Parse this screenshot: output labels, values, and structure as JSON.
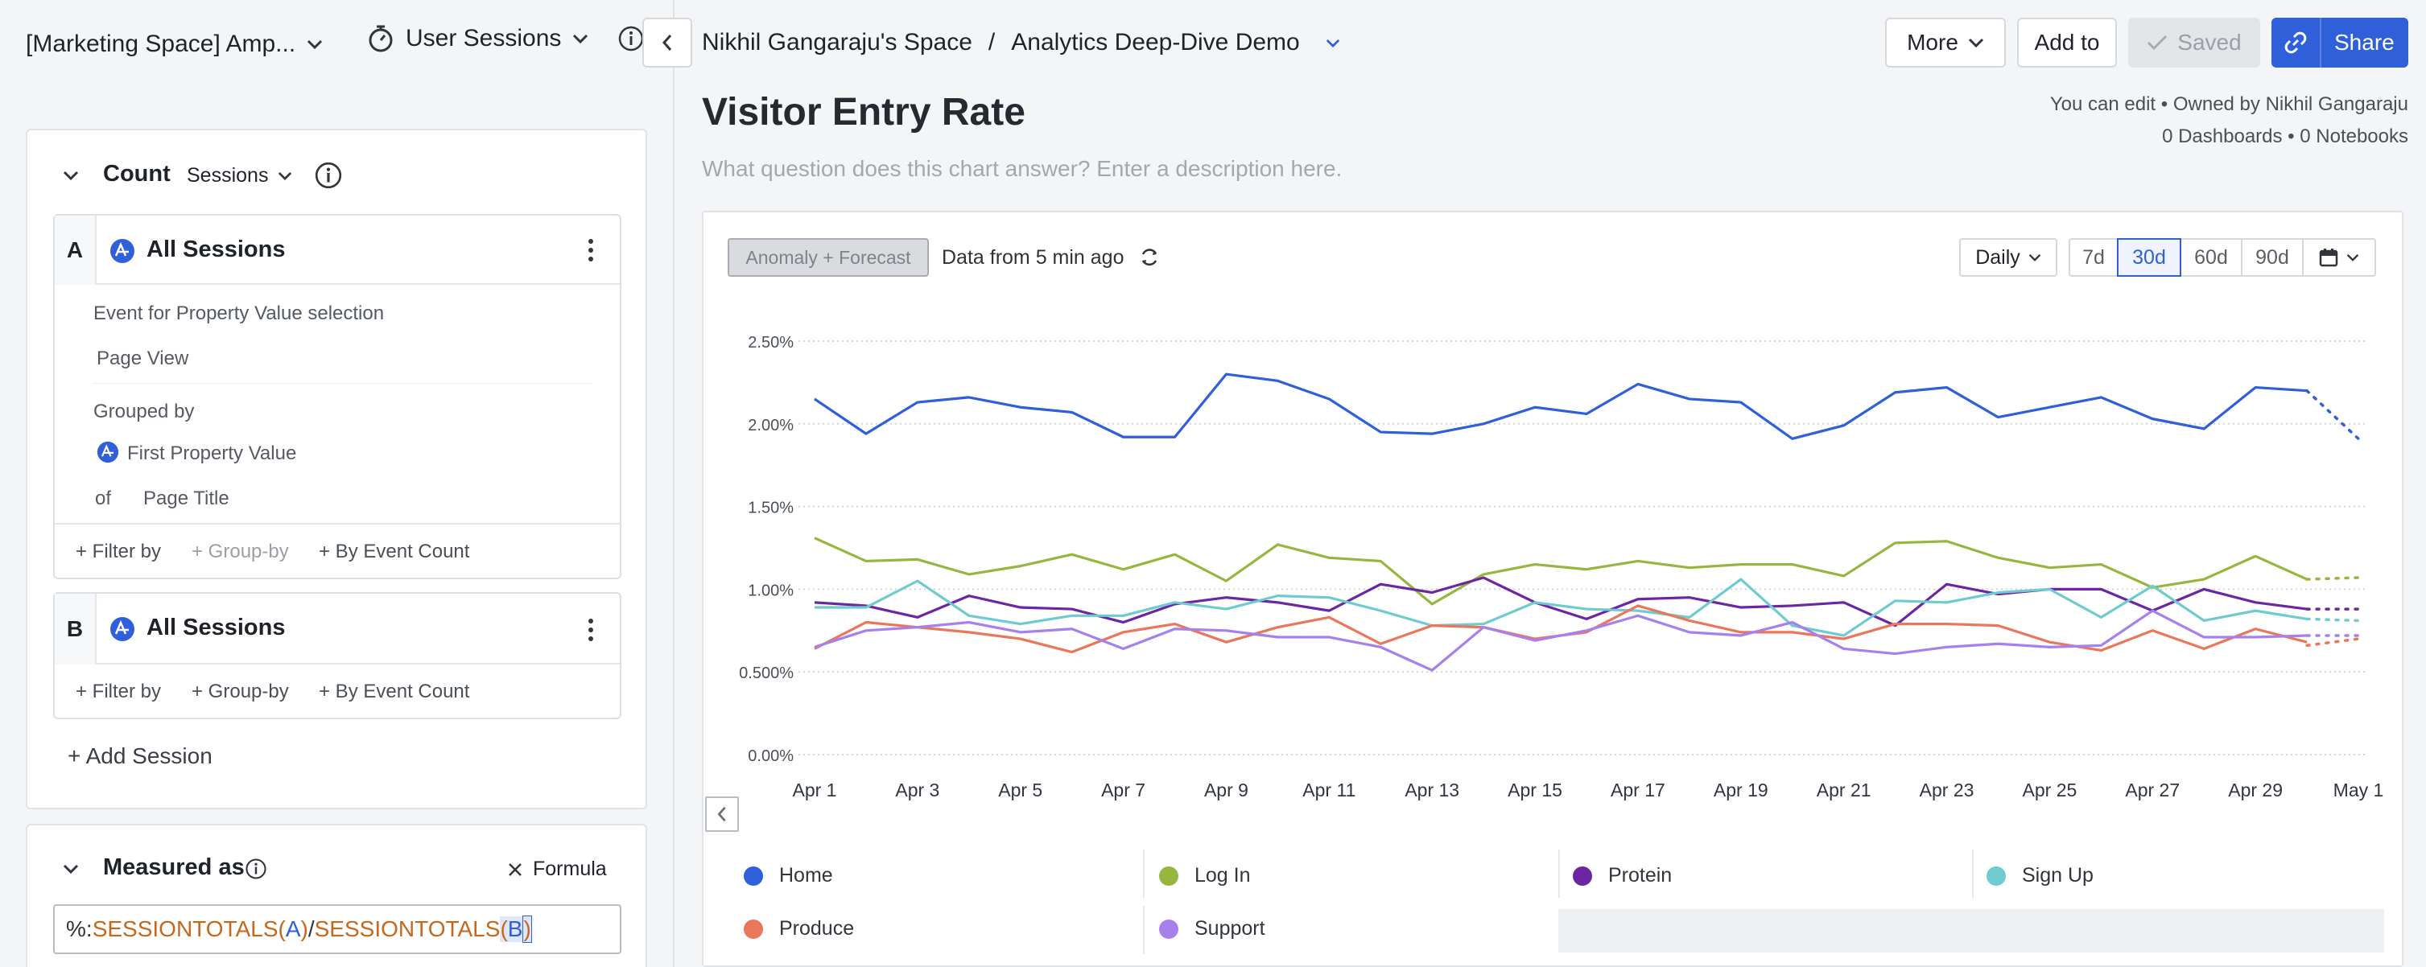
{
  "left": {
    "project": "[Marketing Space] Amp...",
    "chart_type": "User Sessions",
    "count": {
      "title": "Count",
      "unit": "Sessions"
    },
    "segment_a": {
      "letter": "A",
      "name": "All Sessions",
      "event_heading": "Event for Property Value selection",
      "event_value": "Page View",
      "grouped_by": "Grouped by",
      "group_property": "First Property Value",
      "of_label": "of",
      "of_value": "Page Title",
      "filter_by": "+ Filter by",
      "group_by": "+ Group-by",
      "by_event_count": "+ By Event Count"
    },
    "segment_b": {
      "letter": "B",
      "name": "All Sessions",
      "filter_by": "+ Filter by",
      "group_by": "+ Group-by",
      "by_event_count": "+ By Event Count"
    },
    "add_session": "+ Add Session",
    "measured_as": "Measured as",
    "formula_button": "Formula",
    "formula": {
      "prefix": "%:",
      "fn1": "SESSIONTOTALS",
      "arg1": "A",
      "sep": "/",
      "fn2": "SESSIONTOTALS",
      "arg2": "B",
      "open": "(",
      "close": ")"
    }
  },
  "header": {
    "space": "Nikhil Gangaraju's Space",
    "separator": "/",
    "report": "Analytics Deep-Dive Demo",
    "more": "More",
    "add_to": "Add to",
    "saved": "Saved",
    "share": "Share"
  },
  "chart_header": {
    "title": "Visitor Entry Rate",
    "description_placeholder": "What question does this chart answer? Enter a description here.",
    "ownership": "You can edit • Owned by Nikhil Gangaraju",
    "dashboards": "0 Dashboards • 0 Notebooks"
  },
  "toolbar": {
    "anomaly": "Anomaly + Forecast",
    "data_freshness": "Data from 5 min ago",
    "interval": "Daily",
    "ranges": [
      "7d",
      "30d",
      "60d",
      "90d"
    ],
    "selected_range": "30d"
  },
  "colors": {
    "accent": "#2f5fd9",
    "home": "#2f5fd9",
    "log_in": "#97b640",
    "protein": "#6c26a4",
    "sign_up": "#6ecbd0",
    "produce": "#ea775b",
    "support": "#a680ec"
  },
  "chart_data": {
    "type": "line",
    "title": "Visitor Entry Rate",
    "x": [
      "Apr 1",
      "Apr 2",
      "Apr 3",
      "Apr 4",
      "Apr 5",
      "Apr 6",
      "Apr 7",
      "Apr 8",
      "Apr 9",
      "Apr 10",
      "Apr 11",
      "Apr 12",
      "Apr 13",
      "Apr 14",
      "Apr 15",
      "Apr 16",
      "Apr 17",
      "Apr 18",
      "Apr 19",
      "Apr 20",
      "Apr 21",
      "Apr 22",
      "Apr 23",
      "Apr 24",
      "Apr 25",
      "Apr 26",
      "Apr 27",
      "Apr 28",
      "Apr 29",
      "Apr 30"
    ],
    "x_ticks": [
      "Apr 1",
      "Apr 3",
      "Apr 5",
      "Apr 7",
      "Apr 9",
      "Apr 11",
      "Apr 13",
      "Apr 15",
      "Apr 17",
      "Apr 19",
      "Apr 21",
      "Apr 23",
      "Apr 25",
      "Apr 27",
      "Apr 29",
      "May 1"
    ],
    "y_ticks": [
      "0.00%",
      "0.500%",
      "1.00%",
      "1.50%",
      "2.00%",
      "2.50%"
    ],
    "ylim": [
      0,
      2.5
    ],
    "y_unit": "%",
    "grid": true,
    "forecast_to": "May 1",
    "series": [
      {
        "name": "Home",
        "color": "#2f5fd9",
        "values": [
          2.15,
          1.94,
          2.13,
          2.16,
          2.1,
          2.07,
          1.92,
          1.92,
          2.3,
          2.26,
          2.15,
          1.95,
          1.94,
          2.0,
          2.1,
          2.06,
          2.24,
          2.15,
          2.13,
          1.91,
          1.99,
          2.19,
          2.22,
          2.04,
          2.1,
          2.16,
          2.03,
          1.97,
          2.22,
          2.2
        ],
        "forecast": [
          2.2,
          1.91
        ]
      },
      {
        "name": "Log In",
        "color": "#97b640",
        "values": [
          1.31,
          1.17,
          1.18,
          1.09,
          1.14,
          1.21,
          1.12,
          1.21,
          1.05,
          1.27,
          1.19,
          1.17,
          0.91,
          1.09,
          1.15,
          1.12,
          1.17,
          1.13,
          1.15,
          1.15,
          1.08,
          1.28,
          1.29,
          1.19,
          1.13,
          1.15,
          1.01,
          1.06,
          1.2,
          1.06
        ],
        "forecast": [
          1.06,
          1.07
        ]
      },
      {
        "name": "Protein",
        "color": "#6c26a4",
        "values": [
          0.92,
          0.9,
          0.83,
          0.96,
          0.89,
          0.88,
          0.8,
          0.91,
          0.95,
          0.92,
          0.87,
          1.03,
          0.98,
          1.07,
          0.92,
          0.82,
          0.94,
          0.95,
          0.89,
          0.9,
          0.92,
          0.78,
          1.03,
          0.97,
          1.0,
          1.0,
          0.87,
          1.0,
          0.92,
          0.88
        ],
        "forecast": [
          0.88,
          0.88
        ]
      },
      {
        "name": "Sign Up",
        "color": "#6ecbd0",
        "values": [
          0.89,
          0.89,
          1.05,
          0.84,
          0.79,
          0.84,
          0.84,
          0.92,
          0.88,
          0.96,
          0.95,
          0.87,
          0.78,
          0.79,
          0.92,
          0.88,
          0.87,
          0.83,
          1.06,
          0.78,
          0.72,
          0.93,
          0.92,
          0.98,
          1.0,
          0.83,
          1.02,
          0.81,
          0.87,
          0.82
        ],
        "forecast": [
          0.82,
          0.81
        ]
      },
      {
        "name": "Produce",
        "color": "#ea775b",
        "values": [
          0.64,
          0.8,
          0.77,
          0.74,
          0.7,
          0.62,
          0.74,
          0.79,
          0.68,
          0.77,
          0.83,
          0.67,
          0.78,
          0.77,
          0.7,
          0.74,
          0.9,
          0.81,
          0.74,
          0.74,
          0.7,
          0.79,
          0.79,
          0.78,
          0.68,
          0.63,
          0.75,
          0.64,
          0.76,
          0.68
        ],
        "forecast": [
          0.66,
          0.7
        ]
      },
      {
        "name": "Support",
        "color": "#a680ec",
        "values": [
          0.65,
          0.75,
          0.77,
          0.8,
          0.74,
          0.76,
          0.64,
          0.76,
          0.75,
          0.71,
          0.71,
          0.65,
          0.51,
          0.77,
          0.69,
          0.75,
          0.84,
          0.74,
          0.72,
          0.8,
          0.64,
          0.61,
          0.65,
          0.67,
          0.65,
          0.66,
          0.87,
          0.71,
          0.71,
          0.72
        ],
        "forecast": [
          0.72,
          0.72
        ]
      }
    ]
  }
}
